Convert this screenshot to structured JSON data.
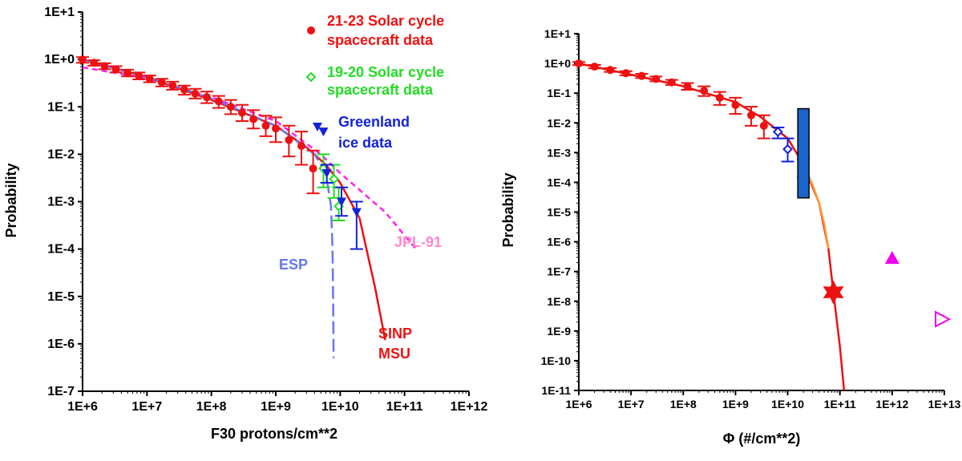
{
  "chart_data": [
    {
      "type": "scatter",
      "xlabel": "F30 protons/cm**2",
      "ylabel": "Probability",
      "x_scale": "log",
      "y_scale": "log",
      "xlim": [
        1000000,
        1000000000000
      ],
      "ylim": [
        1e-07,
        10
      ],
      "x_tick_labels": [
        "1E+6",
        "1E+7",
        "1E+8",
        "1E+9",
        "1E+10",
        "1E+11",
        "1E+12"
      ],
      "y_tick_labels": [
        "1E+1",
        "1E+0",
        "1E-1",
        "1E-2",
        "1E-3",
        "1E-4",
        "1E-5",
        "1E-6",
        "1E-7"
      ],
      "series": [
        {
          "name": "21-23 Solar cycle spacecraft data",
          "legend_lines": [
            "21-23 Solar cycle",
            "spacecraft data"
          ],
          "marker": "filled-circle",
          "color": "#ee1111",
          "points": [
            {
              "x": 1000000,
              "y": 1.0,
              "lo": 0.85,
              "hi": 1.12
            },
            {
              "x": 1500000,
              "y": 0.85,
              "lo": 0.74,
              "hi": 0.96
            },
            {
              "x": 2200000,
              "y": 0.72,
              "lo": 0.62,
              "hi": 0.83
            },
            {
              "x": 3300000,
              "y": 0.62,
              "lo": 0.53,
              "hi": 0.72
            },
            {
              "x": 5000000,
              "y": 0.52,
              "lo": 0.44,
              "hi": 0.61
            },
            {
              "x": 7500000,
              "y": 0.45,
              "lo": 0.38,
              "hi": 0.53
            },
            {
              "x": 11000000,
              "y": 0.39,
              "lo": 0.33,
              "hi": 0.46
            },
            {
              "x": 17000000,
              "y": 0.33,
              "lo": 0.27,
              "hi": 0.39
            },
            {
              "x": 25000000,
              "y": 0.28,
              "lo": 0.23,
              "hi": 0.34
            },
            {
              "x": 38000000,
              "y": 0.23,
              "lo": 0.18,
              "hi": 0.28
            },
            {
              "x": 56000000,
              "y": 0.19,
              "lo": 0.15,
              "hi": 0.24
            },
            {
              "x": 85000000,
              "y": 0.16,
              "lo": 0.12,
              "hi": 0.21
            },
            {
              "x": 130000000,
              "y": 0.13,
              "lo": 0.095,
              "hi": 0.17
            },
            {
              "x": 200000000,
              "y": 0.1,
              "lo": 0.07,
              "hi": 0.14
            },
            {
              "x": 300000000,
              "y": 0.075,
              "lo": 0.05,
              "hi": 0.11
            },
            {
              "x": 450000000,
              "y": 0.055,
              "lo": 0.035,
              "hi": 0.085
            },
            {
              "x": 700000000,
              "y": 0.04,
              "lo": 0.024,
              "hi": 0.065
            },
            {
              "x": 1000000000,
              "y": 0.035,
              "lo": 0.018,
              "hi": 0.06
            },
            {
              "x": 1600000000,
              "y": 0.02,
              "lo": 0.009,
              "hi": 0.04
            },
            {
              "x": 2500000000,
              "y": 0.015,
              "lo": 0.006,
              "hi": 0.03
            },
            {
              "x": 3800000000,
              "y": 0.005,
              "lo": 0.0015,
              "hi": 0.012
            }
          ]
        },
        {
          "name": "19-20 Solar cycle spacecraft data",
          "legend_lines": [
            "19-20 Solar cycle",
            "spacecraft data"
          ],
          "marker": "open-diamond",
          "color": "#22dd22",
          "points": [
            {
              "x": 5500000000,
              "y": 0.005,
              "lo": 0.002,
              "hi": 0.01
            },
            {
              "x": 8000000000,
              "y": 0.003,
              "lo": 0.0012,
              "hi": 0.006
            },
            {
              "x": 9500000000,
              "y": 0.0008,
              "lo": 0.0004,
              "hi": 0.002
            }
          ]
        },
        {
          "name": "Greenland ice data",
          "legend_lines": [
            "Greenland",
            "ice data"
          ],
          "marker": "filled-triangle-down",
          "color": "#1122dd",
          "points": [
            {
              "x": 5500000000,
              "y": 0.03
            },
            {
              "x": 6200000000,
              "y": 0.004,
              "lo": 0.0025,
              "hi": 0.006
            },
            {
              "x": 10500000000,
              "y": 0.001,
              "lo": 0.0005,
              "hi": 0.002
            },
            {
              "x": 18000000000,
              "y": 0.0006,
              "lo": 0.0001,
              "hi": 0.001
            }
          ]
        }
      ],
      "curves": [
        {
          "name": "SINP MSU",
          "label_lines": [
            "SINP",
            "MSU"
          ],
          "color": "#ee1111",
          "style": "solid",
          "points": [
            [
              1000000,
              1.0
            ],
            [
              10000000,
              0.42
            ],
            [
              100000000,
              0.14
            ],
            [
              1000000000,
              0.04
            ],
            [
              3000000000,
              0.014
            ],
            [
              6000000000,
              0.006
            ],
            [
              10000000000,
              0.0025
            ],
            [
              20000000000,
              0.00045
            ],
            [
              35000000000,
              1.5e-05
            ],
            [
              50000000000,
              1.2e-06
            ]
          ]
        },
        {
          "name": "JPL-91",
          "label_lines": [
            "JPL-91"
          ],
          "color": "#ff22ee",
          "style": "dashed",
          "points": [
            [
              1000000,
              0.68
            ],
            [
              10000000,
              0.4
            ],
            [
              100000000,
              0.16
            ],
            [
              1000000000,
              0.05
            ],
            [
              5000000000,
              0.01
            ],
            [
              10000000000,
              0.004
            ],
            [
              50000000000,
              0.0006
            ],
            [
              150000000000,
              0.0001
            ]
          ]
        },
        {
          "name": "ESP",
          "label_lines": [
            "ESP"
          ],
          "color": "#6677ee",
          "style": "dashed",
          "points": [
            [
              1000000,
              1.0
            ],
            [
              10000000,
              0.43
            ],
            [
              100000000,
              0.15
            ],
            [
              1000000000,
              0.04
            ],
            [
              4000000000,
              0.01
            ],
            [
              6000000000,
              0.004
            ],
            [
              7200000000,
              0.0008
            ],
            [
              7600000000,
              0.0001
            ],
            [
              7800000000,
              5e-06
            ],
            [
              7900000000,
              5e-07
            ]
          ]
        }
      ]
    },
    {
      "type": "scatter",
      "xlabel": "Φ (#/cm**2)",
      "ylabel": "Probability",
      "x_scale": "log",
      "y_scale": "log",
      "xlim": [
        1000000,
        10000000000000
      ],
      "ylim": [
        1e-11,
        10
      ],
      "x_tick_labels": [
        "1E+6",
        "1E+7",
        "1E+8",
        "1E+9",
        "1E+10",
        "1E+11",
        "1E+12",
        "1E+13"
      ],
      "y_tick_labels": [
        "1E+1",
        "1E+0",
        "1E-1",
        "1E-2",
        "1E-3",
        "1E-4",
        "1E-5",
        "1E-6",
        "1E-7",
        "1E-8",
        "1E-9",
        "1E-10",
        "1E-11"
      ],
      "series": [
        {
          "name": "spacecraft data",
          "marker": "filled-circle",
          "color": "#ee1111",
          "points": [
            {
              "x": 1000000,
              "y": 1.0,
              "lo": 0.88,
              "hi": 1.12
            },
            {
              "x": 2000000,
              "y": 0.78,
              "lo": 0.68,
              "hi": 0.89
            },
            {
              "x": 4000000,
              "y": 0.6,
              "lo": 0.52,
              "hi": 0.7
            },
            {
              "x": 8000000,
              "y": 0.47,
              "lo": 0.4,
              "hi": 0.55
            },
            {
              "x": 16000000,
              "y": 0.38,
              "lo": 0.32,
              "hi": 0.45
            },
            {
              "x": 30000000,
              "y": 0.3,
              "lo": 0.25,
              "hi": 0.36
            },
            {
              "x": 60000000,
              "y": 0.23,
              "lo": 0.19,
              "hi": 0.28
            },
            {
              "x": 120000000,
              "y": 0.17,
              "lo": 0.13,
              "hi": 0.22
            },
            {
              "x": 250000000,
              "y": 0.12,
              "lo": 0.08,
              "hi": 0.17
            },
            {
              "x": 500000000,
              "y": 0.07,
              "lo": 0.04,
              "hi": 0.11
            },
            {
              "x": 1000000000,
              "y": 0.04,
              "lo": 0.02,
              "hi": 0.07
            },
            {
              "x": 2000000000,
              "y": 0.018,
              "lo": 0.008,
              "hi": 0.035
            },
            {
              "x": 3500000000,
              "y": 0.008,
              "lo": 0.003,
              "hi": 0.018
            }
          ]
        },
        {
          "name": "open diamonds",
          "marker": "open-diamond",
          "color": "#1122dd",
          "points": [
            {
              "x": 6500000000,
              "y": 0.005,
              "lo": 0.003,
              "hi": 0.007
            },
            {
              "x": 10000000000,
              "y": 0.0013,
              "lo": 0.0005,
              "hi": 0.003
            },
            {
              "x": 20000000000,
              "y": 0.0003,
              "lo": 0.00015,
              "hi": 0.0006
            }
          ]
        },
        {
          "name": "ice core range",
          "marker": "box",
          "color": "#1a66cc",
          "points": [
            {
              "x": 20000000000,
              "y_low": 3e-05,
              "y_high": 0.03
            }
          ]
        },
        {
          "name": "star estimate",
          "marker": "star",
          "color": "#ee1111",
          "points": [
            {
              "x": 75000000000,
              "y": 2e-08
            }
          ]
        },
        {
          "name": "triangle estimate",
          "marker": "filled-triangle-up",
          "color": "#ee00ee",
          "points": [
            {
              "x": 1000000000000,
              "y": 2.8e-07
            }
          ]
        },
        {
          "name": "open triangle estimate",
          "marker": "open-triangle-right",
          "color": "#ee00ee",
          "points": [
            {
              "x": 9000000000000,
              "y": 2.5e-09
            }
          ]
        }
      ],
      "curves": [
        {
          "name": "model",
          "color": "#ee1111",
          "style": "solid",
          "points": [
            [
              1000000,
              1.0
            ],
            [
              10000000,
              0.42
            ],
            [
              100000000,
              0.17
            ],
            [
              1000000000,
              0.05
            ],
            [
              3000000000,
              0.016
            ],
            [
              10000000000,
              0.003
            ],
            [
              20000000000,
              0.0004
            ],
            [
              40000000000,
              2e-05
            ],
            [
              60000000000,
              6e-07
            ],
            [
              75000000000,
              2e-08
            ],
            [
              100000000000,
              3e-10
            ],
            [
              120000000000,
              1e-11
            ]
          ]
        },
        {
          "name": "extrapolation",
          "color": "#ff9933",
          "style": "solid",
          "points": [
            [
              20000000000,
              0.0004
            ],
            [
              30000000000,
              8e-05
            ],
            [
              40000000000,
              2e-05
            ],
            [
              50000000000,
              4e-06
            ],
            [
              60000000000,
              6e-07
            ]
          ]
        }
      ]
    }
  ]
}
